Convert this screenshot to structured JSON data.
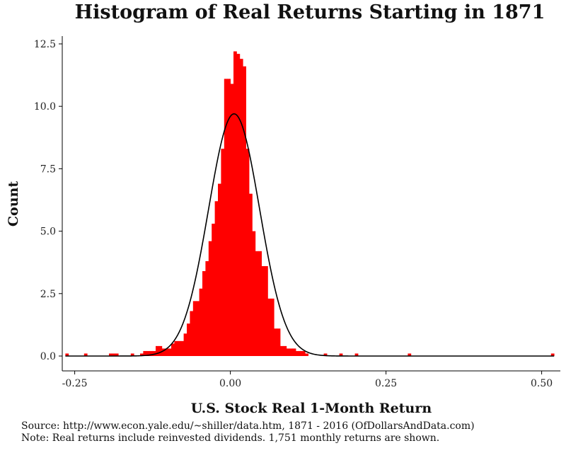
{
  "chart_data": {
    "type": "bar",
    "title": "Histogram of Real Returns Starting in 1871",
    "xlabel": "U.S. Stock Real 1-Month Return",
    "ylabel": "Count",
    "xlim": [
      -0.27,
      0.53
    ],
    "ylim": [
      0,
      12.5
    ],
    "xticks": [
      "-0.25",
      "0.00",
      "0.25",
      "0.50"
    ],
    "yticks": [
      "0.0",
      "2.5",
      "5.0",
      "7.5",
      "10.0",
      "12.5"
    ],
    "grid": false,
    "legend": "none",
    "bar_color": "#ff0000",
    "curve_color": "#000000",
    "series": [
      {
        "type": "histogram",
        "bins": [
          {
            "x0": -0.265,
            "x1": -0.26,
            "value": 0.1
          },
          {
            "x0": -0.235,
            "x1": -0.23,
            "value": 0.1
          },
          {
            "x0": -0.195,
            "x1": -0.19,
            "value": 0.1
          },
          {
            "x0": -0.19,
            "x1": -0.185,
            "value": 0.1
          },
          {
            "x0": -0.185,
            "x1": -0.18,
            "value": 0.1
          },
          {
            "x0": -0.16,
            "x1": -0.155,
            "value": 0.1
          },
          {
            "x0": -0.145,
            "x1": -0.14,
            "value": 0.1
          },
          {
            "x0": -0.14,
            "x1": -0.135,
            "value": 0.2
          },
          {
            "x0": -0.135,
            "x1": -0.13,
            "value": 0.2
          },
          {
            "x0": -0.13,
            "x1": -0.125,
            "value": 0.2
          },
          {
            "x0": -0.125,
            "x1": -0.12,
            "value": 0.2
          },
          {
            "x0": -0.12,
            "x1": -0.115,
            "value": 0.4
          },
          {
            "x0": -0.115,
            "x1": -0.11,
            "value": 0.4
          },
          {
            "x0": -0.11,
            "x1": -0.105,
            "value": 0.3
          },
          {
            "x0": -0.105,
            "x1": -0.1,
            "value": 0.3
          },
          {
            "x0": -0.1,
            "x1": -0.095,
            "value": 0.3
          },
          {
            "x0": -0.095,
            "x1": -0.09,
            "value": 0.5
          },
          {
            "x0": -0.09,
            "x1": -0.085,
            "value": 0.6
          },
          {
            "x0": -0.085,
            "x1": -0.08,
            "value": 0.6
          },
          {
            "x0": -0.08,
            "x1": -0.075,
            "value": 0.6
          },
          {
            "x0": -0.075,
            "x1": -0.07,
            "value": 0.9
          },
          {
            "x0": -0.07,
            "x1": -0.065,
            "value": 1.3
          },
          {
            "x0": -0.065,
            "x1": -0.06,
            "value": 1.8
          },
          {
            "x0": -0.06,
            "x1": -0.055,
            "value": 2.2
          },
          {
            "x0": -0.055,
            "x1": -0.05,
            "value": 2.2
          },
          {
            "x0": -0.05,
            "x1": -0.045,
            "value": 2.7
          },
          {
            "x0": -0.045,
            "x1": -0.04,
            "value": 3.4
          },
          {
            "x0": -0.04,
            "x1": -0.035,
            "value": 3.8
          },
          {
            "x0": -0.035,
            "x1": -0.03,
            "value": 4.6
          },
          {
            "x0": -0.03,
            "x1": -0.025,
            "value": 5.3
          },
          {
            "x0": -0.025,
            "x1": -0.02,
            "value": 6.2
          },
          {
            "x0": -0.02,
            "x1": -0.015,
            "value": 6.9
          },
          {
            "x0": -0.015,
            "x1": -0.01,
            "value": 8.3
          },
          {
            "x0": -0.01,
            "x1": -0.005,
            "value": 11.1
          },
          {
            "x0": -0.005,
            "x1": 0.0,
            "value": 11.1
          },
          {
            "x0": 0.0,
            "x1": 0.005,
            "value": 10.9
          },
          {
            "x0": 0.005,
            "x1": 0.01,
            "value": 12.2
          },
          {
            "x0": 0.01,
            "x1": 0.015,
            "value": 12.1
          },
          {
            "x0": 0.015,
            "x1": 0.02,
            "value": 11.9
          },
          {
            "x0": 0.02,
            "x1": 0.025,
            "value": 11.6
          },
          {
            "x0": 0.025,
            "x1": 0.03,
            "value": 8.3
          },
          {
            "x0": 0.03,
            "x1": 0.035,
            "value": 6.5
          },
          {
            "x0": 0.035,
            "x1": 0.04,
            "value": 5.0
          },
          {
            "x0": 0.04,
            "x1": 0.045,
            "value": 4.2
          },
          {
            "x0": 0.045,
            "x1": 0.05,
            "value": 4.2
          },
          {
            "x0": 0.05,
            "x1": 0.055,
            "value": 3.6
          },
          {
            "x0": 0.055,
            "x1": 0.06,
            "value": 3.6
          },
          {
            "x0": 0.06,
            "x1": 0.065,
            "value": 2.3
          },
          {
            "x0": 0.065,
            "x1": 0.07,
            "value": 2.3
          },
          {
            "x0": 0.07,
            "x1": 0.075,
            "value": 1.1
          },
          {
            "x0": 0.075,
            "x1": 0.08,
            "value": 1.1
          },
          {
            "x0": 0.08,
            "x1": 0.085,
            "value": 0.4
          },
          {
            "x0": 0.085,
            "x1": 0.09,
            "value": 0.4
          },
          {
            "x0": 0.09,
            "x1": 0.095,
            "value": 0.3
          },
          {
            "x0": 0.095,
            "x1": 0.1,
            "value": 0.3
          },
          {
            "x0": 0.1,
            "x1": 0.105,
            "value": 0.3
          },
          {
            "x0": 0.105,
            "x1": 0.11,
            "value": 0.2
          },
          {
            "x0": 0.11,
            "x1": 0.115,
            "value": 0.2
          },
          {
            "x0": 0.115,
            "x1": 0.12,
            "value": 0.2
          },
          {
            "x0": 0.12,
            "x1": 0.125,
            "value": 0.1
          },
          {
            "x0": 0.15,
            "x1": 0.155,
            "value": 0.1
          },
          {
            "x0": 0.175,
            "x1": 0.18,
            "value": 0.1
          },
          {
            "x0": 0.2,
            "x1": 0.205,
            "value": 0.1
          },
          {
            "x0": 0.285,
            "x1": 0.29,
            "value": 0.1
          },
          {
            "x0": 0.515,
            "x1": 0.52,
            "value": 0.1
          }
        ]
      },
      {
        "type": "normal-curve",
        "mean": 0.006,
        "sd": 0.041,
        "scale": 1.0,
        "peak": 9.7
      }
    ]
  },
  "footer": {
    "source": "Source:  http://www.econ.yale.edu/~shiller/data.htm, 1871 - 2016 (OfDollarsAndData.com)",
    "note": "Note:  Real returns include reinvested dividends.  1,751 monthly returns are shown."
  }
}
